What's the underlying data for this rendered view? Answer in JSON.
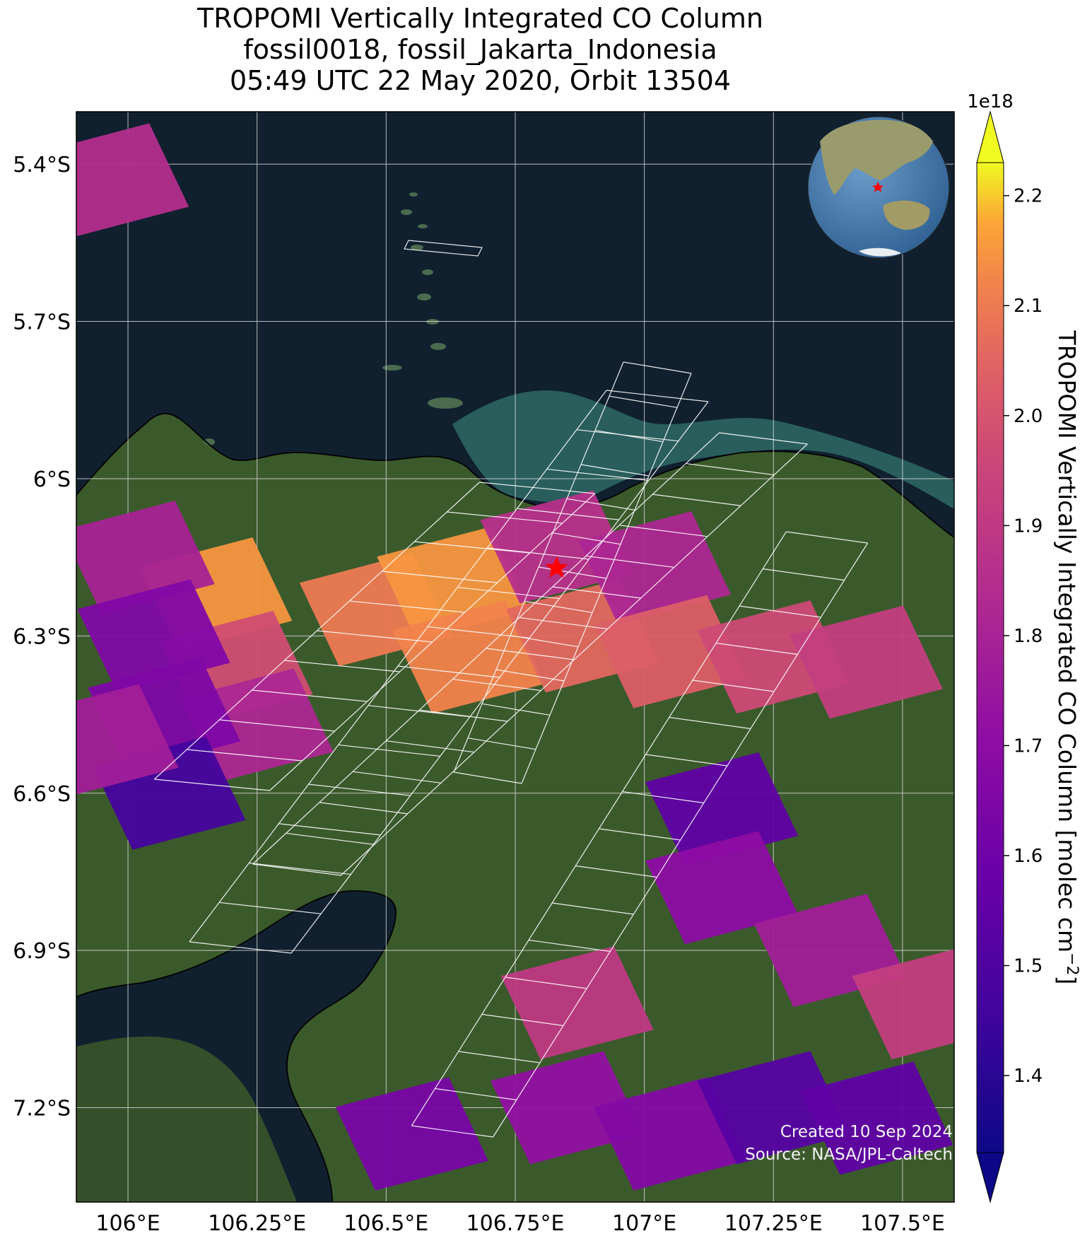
{
  "title": {
    "line1": "TROPOMI Vertically Integrated CO Column",
    "line2": "fossil0018, fossil_Jakarta_Indonesia",
    "line3": "05:49 UTC 22 May 2020, Orbit 13504"
  },
  "map": {
    "extent": {
      "lon_min": 105.9,
      "lon_max": 107.6,
      "lat_min": -7.38,
      "lat_max": -5.3
    },
    "lon_ticks": [
      106.0,
      106.25,
      106.5,
      106.75,
      107.0,
      107.25,
      107.5
    ],
    "lon_tick_labels": [
      "106°E",
      "106.25°E",
      "106.5°E",
      "106.75°E",
      "107°E",
      "107.25°E",
      "107.5°E"
    ],
    "lat_ticks": [
      -5.4,
      -5.7,
      -6.0,
      -6.3,
      -6.6,
      -6.9,
      -7.2
    ],
    "lat_tick_labels": [
      "5.4°S",
      "5.7°S",
      "6°S",
      "6.3°S",
      "6.6°S",
      "6.9°S",
      "7.2°S"
    ],
    "gridlines": true,
    "basemap": "satellite imagery",
    "target": {
      "name": "fossil_Jakarta_Indonesia",
      "lon": 106.83,
      "lat": -6.17,
      "marker": "red-star-icon"
    },
    "inset_globe": {
      "position": "top-right",
      "marker": "red-star-icon"
    }
  },
  "colorbar": {
    "label": "TROPOMI Vertically Integrated CO Column [molec cm$^{-2}$]",
    "label_main": "TROPOMI Vertically Integrated CO Column [molec cm",
    "label_exp": "−2",
    "label_close": "]",
    "multiplier": "1e18",
    "ticks": [
      1.4,
      1.5,
      1.6,
      1.7,
      1.8,
      1.9,
      2.0,
      2.1,
      2.2
    ],
    "tick_labels": [
      "1.4",
      "1.5",
      "1.6",
      "1.7",
      "1.8",
      "1.9",
      "2.0",
      "2.1",
      "2.2"
    ],
    "range": [
      1.33,
      2.23
    ],
    "colormap": "plasma",
    "extend": "both"
  },
  "credits": {
    "created": "Created 10 Sep 2024",
    "source": "Source: NASA/JPL-Caltech"
  },
  "colors": {
    "ocean": "#10202f",
    "land": "#3b5a2c",
    "shallow_water": "#2f6e68",
    "gridline": "#d8d8d8",
    "footprint_outline": "#ffffff",
    "star": "#ff0000"
  },
  "chart_data": {
    "type": "heatmap",
    "units": "molec cm^-2 (x1e18)",
    "soundings": [
      {
        "lon": 106.17,
        "lat": -6.22,
        "co": 2.15
      },
      {
        "lon": 106.21,
        "lat": -6.36,
        "co": 1.98
      },
      {
        "lon": 106.25,
        "lat": -6.47,
        "co": 1.82
      },
      {
        "lon": 106.02,
        "lat": -6.15,
        "co": 1.8
      },
      {
        "lon": 106.05,
        "lat": -6.3,
        "co": 1.66
      },
      {
        "lon": 106.07,
        "lat": -6.45,
        "co": 1.65
      },
      {
        "lon": 106.08,
        "lat": -6.6,
        "co": 1.47
      },
      {
        "lon": 105.97,
        "lat": -5.43,
        "co": 1.85
      },
      {
        "lon": 105.95,
        "lat": -6.5,
        "co": 1.78
      },
      {
        "lon": 106.48,
        "lat": -6.25,
        "co": 2.1
      },
      {
        "lon": 106.63,
        "lat": -6.2,
        "co": 2.15
      },
      {
        "lon": 106.66,
        "lat": -6.34,
        "co": 2.12
      },
      {
        "lon": 106.83,
        "lat": -6.13,
        "co": 1.86
      },
      {
        "lon": 106.88,
        "lat": -6.3,
        "co": 2.06
      },
      {
        "lon": 107.02,
        "lat": -6.17,
        "co": 1.82
      },
      {
        "lon": 107.05,
        "lat": -6.33,
        "co": 2.03
      },
      {
        "lon": 107.25,
        "lat": -6.34,
        "co": 1.97
      },
      {
        "lon": 107.43,
        "lat": -6.35,
        "co": 1.92
      },
      {
        "lon": 107.15,
        "lat": -6.63,
        "co": 1.55
      },
      {
        "lon": 107.15,
        "lat": -6.78,
        "co": 1.7
      },
      {
        "lon": 107.36,
        "lat": -6.9,
        "co": 1.78
      },
      {
        "lon": 107.55,
        "lat": -7.0,
        "co": 1.92
      },
      {
        "lon": 106.87,
        "lat": -7.0,
        "co": 1.9
      },
      {
        "lon": 106.55,
        "lat": -7.25,
        "co": 1.63
      },
      {
        "lon": 106.85,
        "lat": -7.2,
        "co": 1.72
      },
      {
        "lon": 107.05,
        "lat": -7.25,
        "co": 1.67
      },
      {
        "lon": 107.25,
        "lat": -7.2,
        "co": 1.52
      },
      {
        "lon": 107.45,
        "lat": -7.22,
        "co": 1.55
      }
    ]
  }
}
